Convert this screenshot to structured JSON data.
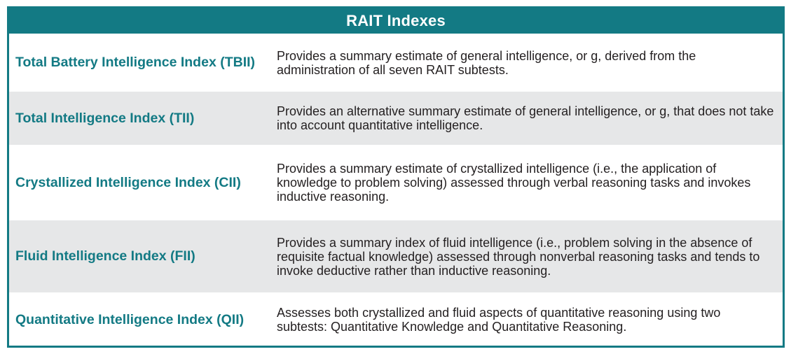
{
  "table": {
    "title": "RAIT Indexes",
    "rows": [
      {
        "term": "Total Battery Intelligence Index (TBII)",
        "description": "Provides a summary estimate of general intelligence, or g, derived from the administration of all seven RAIT subtests."
      },
      {
        "term": "Total Intelligence Index (TII)",
        "description": "Provides an alternative summary estimate of general intelligence, or g, that does not take into account quantitative intelligence."
      },
      {
        "term": "Crystallized Intelligence Index (CII)",
        "description": "Provides a summary estimate of crystallized intelligence (i.e., the application of knowledge to problem solving) assessed through verbal reasoning tasks and invokes inductive reasoning."
      },
      {
        "term": "Fluid Intelligence Index (FII)",
        "description": "Provides a summary index of fluid intelligence (i.e., problem solving in the absence of requisite factual knowledge) assessed through nonverbal reasoning tasks and tends to invoke deductive rather than inductive reasoning."
      },
      {
        "term": "Quantitative Intelligence Index (QII)",
        "description": "Assesses both crystallized and fluid aspects of quantitative reasoning using two subtests: Quantitative Knowledge and Quantitative Reasoning."
      }
    ]
  },
  "colors": {
    "accent": "#137a84",
    "alt_row": "#e6e7e8",
    "body_text": "#231f20"
  }
}
